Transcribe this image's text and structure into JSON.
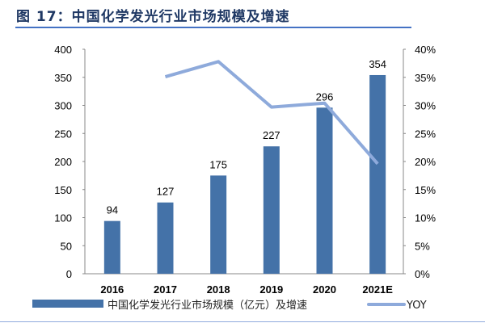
{
  "title": "图 17：中国化学发光行业市场规模及增速",
  "chart_data": {
    "type": "bar+line",
    "title": "图 17：中国化学发光行业市场规模及增速",
    "categories": [
      "2016",
      "2017",
      "2018",
      "2019",
      "2020",
      "2021E"
    ],
    "series": [
      {
        "name": "中国化学发光行业市场规模（亿元）及增速",
        "type": "bar",
        "axis": "left",
        "color": "#4472a8",
        "values": [
          94,
          127,
          175,
          227,
          296,
          354
        ]
      },
      {
        "name": "YOY",
        "type": "line",
        "axis": "right",
        "color": "#8eaadb",
        "values": [
          null,
          35.1,
          37.8,
          29.7,
          30.4,
          19.6
        ]
      }
    ],
    "y_left": {
      "lim": [
        0,
        400
      ],
      "ticks": [
        "0",
        "50",
        "100",
        "150",
        "200",
        "250",
        "300",
        "350",
        "400"
      ]
    },
    "y_right": {
      "lim": [
        0,
        40
      ],
      "ticks": [
        "0%",
        "5%",
        "10%",
        "15%",
        "20%",
        "25%",
        "30%",
        "35%",
        "40%"
      ]
    },
    "data_labels": [
      "94",
      "127",
      "175",
      "227",
      "296",
      "354"
    ],
    "grid": false,
    "legend": "bottom"
  }
}
